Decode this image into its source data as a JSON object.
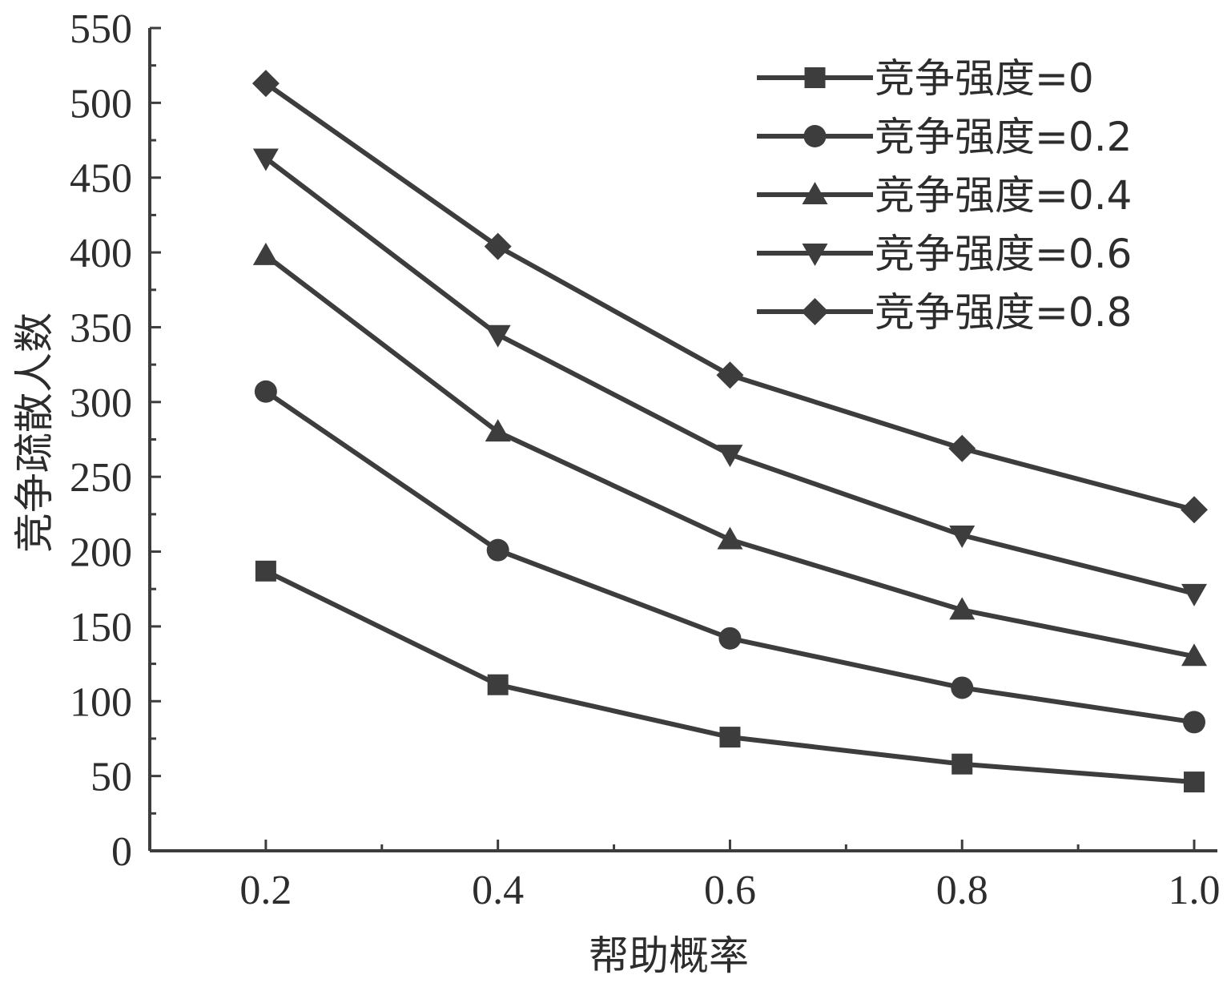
{
  "chart_data": {
    "type": "line",
    "xlabel": "帮助概率",
    "ylabel": "竞争疏散人数",
    "x": [
      0.2,
      0.4,
      0.6,
      0.8,
      1.0
    ],
    "x_ticks": [
      "0.2",
      "0.4",
      "0.6",
      "0.8",
      "1.0"
    ],
    "y_ticks": [
      "0",
      "50",
      "100",
      "150",
      "200",
      "250",
      "300",
      "350",
      "400",
      "450",
      "500",
      "550"
    ],
    "xlim": [
      0.1,
      1.02
    ],
    "ylim": [
      0,
      550
    ],
    "grid": false,
    "legend_position": "top-right",
    "line_color": "#3d3d3d",
    "series": [
      {
        "name": "竞争强度=0",
        "marker": "square",
        "values": [
          187,
          111,
          76,
          58,
          46
        ]
      },
      {
        "name": "竞争强度=0.2",
        "marker": "circle",
        "values": [
          307,
          201,
          142,
          109,
          86
        ]
      },
      {
        "name": "竞争强度=0.4",
        "marker": "triangle-up",
        "values": [
          398,
          280,
          208,
          161,
          130
        ]
      },
      {
        "name": "竞争强度=0.6",
        "marker": "triangle-down",
        "values": [
          463,
          345,
          265,
          211,
          172
        ]
      },
      {
        "name": "竞争强度=0.8",
        "marker": "diamond",
        "values": [
          513,
          404,
          318,
          269,
          228
        ]
      }
    ]
  }
}
